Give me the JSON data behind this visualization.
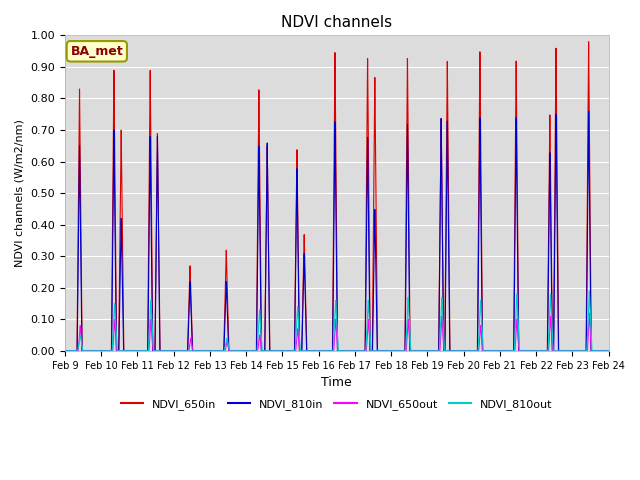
{
  "title": "NDVI channels",
  "ylabel": "NDVI channels (W/m2/nm)",
  "xlabel": "Time",
  "ylim": [
    0.0,
    1.0
  ],
  "yticks": [
    0.0,
    0.1,
    0.2,
    0.3,
    0.4,
    0.5,
    0.6,
    0.7,
    0.8,
    0.9,
    1.0
  ],
  "date_labels": [
    "Feb 9",
    "Feb 10",
    "Feb 11",
    "Feb 12",
    "Feb 13",
    "Feb 14",
    "Feb 15",
    "Feb 16",
    "Feb 17",
    "Feb 18",
    "Feb 19",
    "Feb 20",
    "Feb 21",
    "Feb 22",
    "Feb 23",
    "Feb 24"
  ],
  "colors": {
    "NDVI_650in": "#dd0000",
    "NDVI_810in": "#0000cc",
    "NDVI_650out": "#ff00ff",
    "NDVI_810out": "#00cccc"
  },
  "legend_labels": [
    "NDVI_650in",
    "NDVI_810in",
    "NDVI_650out",
    "NDVI_810out"
  ],
  "ba_met_label": "BA_met",
  "figsize": [
    6.4,
    4.8
  ],
  "dpi": 100
}
